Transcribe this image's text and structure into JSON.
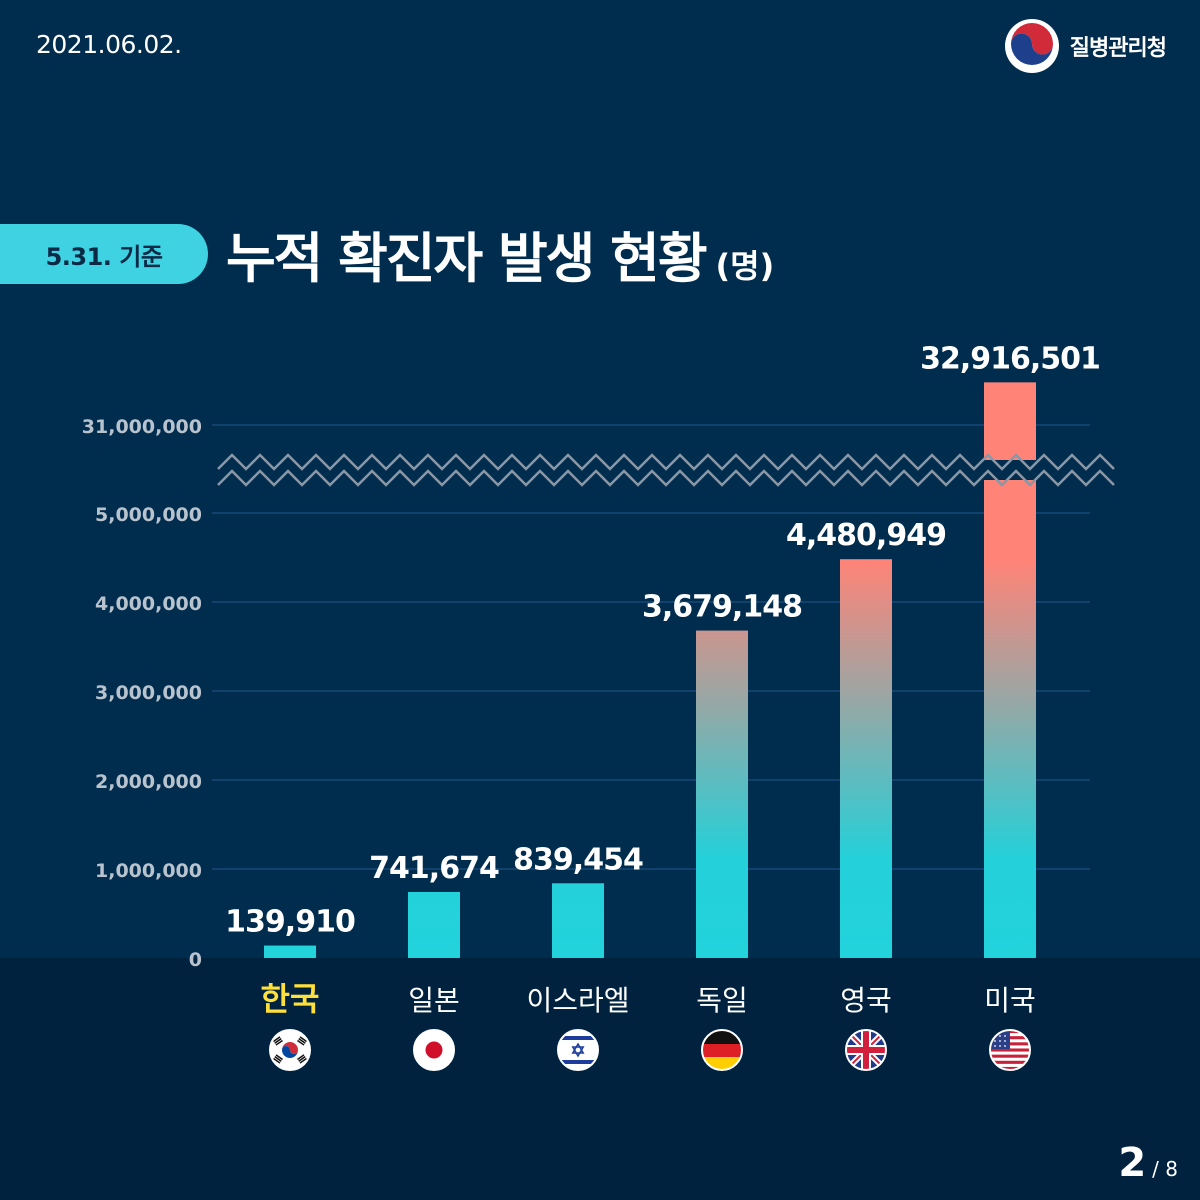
{
  "header": {
    "date": "2021.06.02.",
    "agency_name": "질병관리청"
  },
  "title": {
    "basis": "5.31. 기준",
    "main": "누적 확진자 발생 현황",
    "unit": "(명)"
  },
  "pagination": {
    "current": "2",
    "total": "/ 8"
  },
  "colors": {
    "bar_low": "#22d3dc",
    "bar_high": "#ff8377",
    "highlight_label": "#ffe03a",
    "tick_label": "#b9c3ce",
    "grid": "#174a78",
    "break_line": "#8a97a6"
  },
  "chart_data": {
    "type": "bar",
    "categories": [
      "한국",
      "일본",
      "이스라엘",
      "독일",
      "영국",
      "미국"
    ],
    "flags": [
      "korea-flag",
      "japan-flag",
      "israel-flag",
      "germany-flag",
      "uk-flag",
      "usa-flag"
    ],
    "values": [
      139910,
      741674,
      839454,
      3679148,
      4480949,
      32916501
    ],
    "value_labels": [
      "139,910",
      "741,674",
      "839,454",
      "3,679,148",
      "4,480,949",
      "32,916,501"
    ],
    "highlight_category": "한국",
    "ylim": [
      0,
      31000000
    ],
    "axis_break": [
      5000000,
      31000000
    ],
    "yticks": [
      0,
      1000000,
      2000000,
      3000000,
      4000000,
      5000000,
      31000000
    ],
    "ytick_labels": [
      "0",
      "1,000,000",
      "2,000,000",
      "3,000,000",
      "4,000,000",
      "5,000,000",
      "31,000,000"
    ],
    "grid": true,
    "legend": "none"
  }
}
